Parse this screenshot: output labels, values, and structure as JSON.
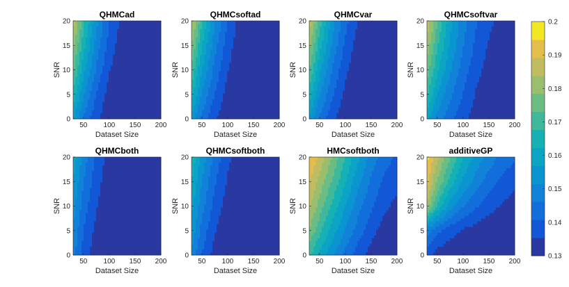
{
  "chart_data": {
    "type": "heatmap",
    "style": "filled-contour",
    "colormap": "parula",
    "colorbar": {
      "limits": [
        0.13,
        0.2
      ],
      "ticks": [
        0.13,
        0.14,
        0.15,
        0.16,
        0.17,
        0.18,
        0.19,
        0.2
      ],
      "tick_labels": [
        "0.13",
        "0.14",
        "0.15",
        "0.16",
        "0.17",
        "0.18",
        "0.19",
        "0.2"
      ]
    },
    "levels": [
      0.13,
      0.1356,
      0.1412,
      0.1468,
      0.1524,
      0.158,
      0.1636,
      0.1692,
      0.1748,
      0.1804,
      0.186,
      0.1916,
      0.1972,
      0.2
    ],
    "xlabel": "Dataset Size",
    "ylabel": "SNR",
    "xlim": [
      30,
      200
    ],
    "ylim": [
      0,
      20
    ],
    "xticks": [
      50,
      100,
      150,
      200
    ],
    "xtick_labels": [
      "50",
      "100",
      "150",
      "200"
    ],
    "yticks": [
      0,
      5,
      10,
      15,
      20
    ],
    "ytick_labels": [
      "0",
      "5",
      "10",
      "15",
      "20"
    ],
    "x": [
      30,
      50,
      75,
      100,
      125,
      150,
      175,
      200
    ],
    "y": [
      0,
      5,
      10,
      15,
      20
    ],
    "panels": [
      {
        "title": "QHMCad",
        "z": [
          [
            0.158,
            0.146,
            0.137,
            0.131,
            0.13,
            0.13,
            0.13,
            0.13
          ],
          [
            0.168,
            0.153,
            0.141,
            0.133,
            0.13,
            0.13,
            0.13,
            0.13
          ],
          [
            0.176,
            0.16,
            0.146,
            0.136,
            0.131,
            0.13,
            0.13,
            0.13
          ],
          [
            0.182,
            0.166,
            0.15,
            0.139,
            0.132,
            0.13,
            0.13,
            0.13
          ],
          [
            0.19,
            0.171,
            0.154,
            0.141,
            0.134,
            0.131,
            0.13,
            0.13
          ]
        ]
      },
      {
        "title": "QHMCsoftad",
        "z": [
          [
            0.156,
            0.145,
            0.136,
            0.131,
            0.13,
            0.13,
            0.13,
            0.13
          ],
          [
            0.166,
            0.152,
            0.141,
            0.133,
            0.13,
            0.13,
            0.13,
            0.13
          ],
          [
            0.174,
            0.158,
            0.145,
            0.136,
            0.131,
            0.13,
            0.13,
            0.13
          ],
          [
            0.181,
            0.164,
            0.149,
            0.138,
            0.132,
            0.13,
            0.13,
            0.13
          ],
          [
            0.188,
            0.17,
            0.153,
            0.141,
            0.133,
            0.131,
            0.13,
            0.13
          ]
        ]
      },
      {
        "title": "QHMCvar",
        "z": [
          [
            0.157,
            0.146,
            0.137,
            0.131,
            0.13,
            0.13,
            0.13,
            0.13
          ],
          [
            0.167,
            0.153,
            0.142,
            0.134,
            0.13,
            0.13,
            0.13,
            0.13
          ],
          [
            0.175,
            0.16,
            0.146,
            0.137,
            0.131,
            0.13,
            0.13,
            0.13
          ],
          [
            0.182,
            0.166,
            0.151,
            0.14,
            0.133,
            0.13,
            0.13,
            0.13
          ],
          [
            0.19,
            0.172,
            0.155,
            0.143,
            0.135,
            0.131,
            0.13,
            0.13
          ]
        ]
      },
      {
        "title": "QHMCsoftvar",
        "z": [
          [
            0.16,
            0.15,
            0.143,
            0.137,
            0.133,
            0.13,
            0.13,
            0.13
          ],
          [
            0.17,
            0.158,
            0.148,
            0.141,
            0.135,
            0.131,
            0.13,
            0.13
          ],
          [
            0.178,
            0.165,
            0.153,
            0.144,
            0.138,
            0.133,
            0.131,
            0.13
          ],
          [
            0.184,
            0.17,
            0.157,
            0.147,
            0.14,
            0.135,
            0.132,
            0.131
          ],
          [
            0.191,
            0.175,
            0.16,
            0.149,
            0.142,
            0.137,
            0.134,
            0.132
          ]
        ]
      },
      {
        "title": "QHMCboth",
        "z": [
          [
            0.149,
            0.139,
            0.132,
            0.13,
            0.13,
            0.13,
            0.13,
            0.13
          ],
          [
            0.152,
            0.141,
            0.134,
            0.13,
            0.13,
            0.13,
            0.13,
            0.13
          ],
          [
            0.155,
            0.144,
            0.136,
            0.131,
            0.13,
            0.13,
            0.13,
            0.13
          ],
          [
            0.158,
            0.147,
            0.138,
            0.132,
            0.13,
            0.13,
            0.13,
            0.13
          ],
          [
            0.162,
            0.15,
            0.14,
            0.133,
            0.131,
            0.13,
            0.13,
            0.13
          ]
        ]
      },
      {
        "title": "QHMCsoftboth",
        "z": [
          [
            0.151,
            0.141,
            0.133,
            0.13,
            0.13,
            0.13,
            0.13,
            0.13
          ],
          [
            0.156,
            0.145,
            0.136,
            0.131,
            0.13,
            0.13,
            0.13,
            0.13
          ],
          [
            0.16,
            0.149,
            0.139,
            0.133,
            0.13,
            0.13,
            0.13,
            0.13
          ],
          [
            0.164,
            0.152,
            0.142,
            0.135,
            0.131,
            0.13,
            0.13,
            0.13
          ],
          [
            0.168,
            0.156,
            0.145,
            0.137,
            0.132,
            0.13,
            0.13,
            0.13
          ]
        ]
      },
      {
        "title": "HMCsoftboth",
        "z": [
          [
            0.17,
            0.162,
            0.153,
            0.145,
            0.138,
            0.133,
            0.13,
            0.13
          ],
          [
            0.18,
            0.171,
            0.161,
            0.152,
            0.144,
            0.138,
            0.133,
            0.131
          ],
          [
            0.187,
            0.178,
            0.168,
            0.158,
            0.149,
            0.142,
            0.137,
            0.134
          ],
          [
            0.192,
            0.184,
            0.174,
            0.164,
            0.154,
            0.146,
            0.14,
            0.137
          ],
          [
            0.198,
            0.19,
            0.18,
            0.169,
            0.159,
            0.15,
            0.144,
            0.14
          ]
        ]
      },
      {
        "title": "additiveGP",
        "z": [
          [
            0.138,
            0.133,
            0.131,
            0.13,
            0.13,
            0.13,
            0.13,
            0.13
          ],
          [
            0.15,
            0.143,
            0.138,
            0.135,
            0.133,
            0.131,
            0.13,
            0.13
          ],
          [
            0.185,
            0.168,
            0.155,
            0.147,
            0.142,
            0.138,
            0.135,
            0.133
          ],
          [
            0.194,
            0.18,
            0.167,
            0.157,
            0.15,
            0.144,
            0.14,
            0.137
          ],
          [
            0.199,
            0.188,
            0.175,
            0.164,
            0.156,
            0.15,
            0.145,
            0.142
          ]
        ]
      }
    ]
  }
}
